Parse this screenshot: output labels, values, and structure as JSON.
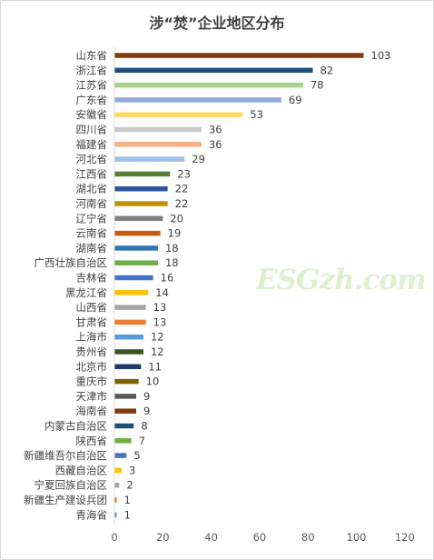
{
  "chart_data": {
    "type": "bar",
    "orientation": "horizontal",
    "title": "涉“焚”企业地区分布",
    "categories": [
      "山东省",
      "浙江省",
      "江苏省",
      "广东省",
      "安徽省",
      "四川省",
      "福建省",
      "河北省",
      "江西省",
      "湖北省",
      "河南省",
      "辽宁省",
      "云南省",
      "湖南省",
      "广西壮族自治区",
      "吉林省",
      "黑龙江省",
      "山西省",
      "甘肃省",
      "上海市",
      "贵州省",
      "北京市",
      "重庆市",
      "天津市",
      "海南省",
      "内蒙古自治区",
      "陕西省",
      "新疆维吾尔自治区",
      "西藏自治区",
      "宁夏回族自治区",
      "新疆生产建设兵团",
      "青海省"
    ],
    "values": [
      103,
      82,
      78,
      69,
      53,
      36,
      36,
      29,
      23,
      22,
      22,
      20,
      19,
      18,
      18,
      16,
      14,
      13,
      13,
      12,
      12,
      11,
      10,
      9,
      9,
      8,
      7,
      5,
      3,
      2,
      1,
      1
    ],
    "colors": [
      "#843C0C",
      "#1F4E79",
      "#A9D18E",
      "#8FAADC",
      "#FFD966",
      "#C9C9C9",
      "#F4B183",
      "#9DC3E6",
      "#548235",
      "#2F5597",
      "#BF9000",
      "#7F7F7F",
      "#C55A11",
      "#2E75B6",
      "#70AD47",
      "#4472C4",
      "#FFC000",
      "#A5A5A5",
      "#ED7D31",
      "#5B9BD5",
      "#375623",
      "#203864",
      "#806000",
      "#595959",
      "#843C0C",
      "#1F4E79",
      "#70AD47",
      "#4472C4",
      "#FFC000",
      "#A5A5A5",
      "#ED7D31",
      "#5B9BD5"
    ],
    "xlim": [
      0,
      120
    ],
    "xticks": [
      0,
      20,
      40,
      60,
      80,
      100,
      120
    ],
    "xlabel": "",
    "ylabel": "",
    "grid": false,
    "legend": "none"
  },
  "watermark": "ESGzh.com"
}
